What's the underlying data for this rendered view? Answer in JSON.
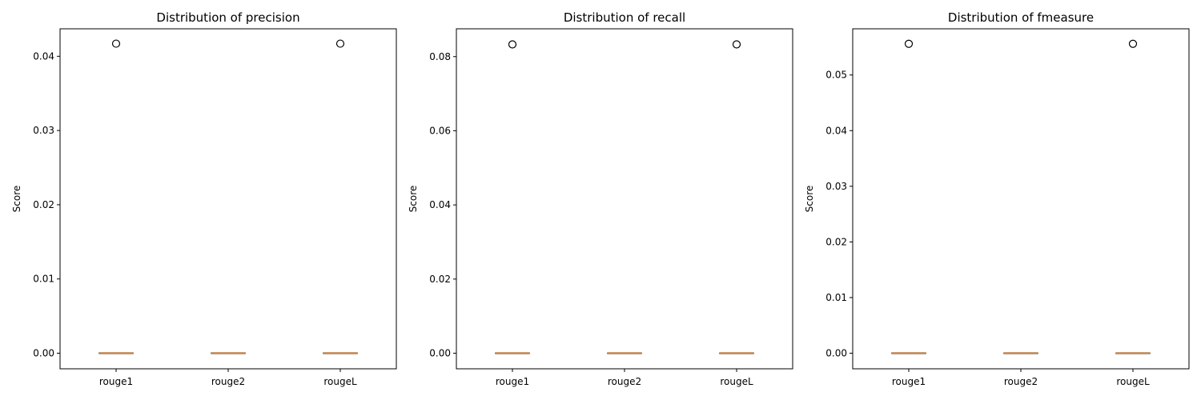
{
  "chart_data": [
    {
      "type": "box",
      "title": "Distribution of precision",
      "xlabel": "",
      "ylabel": "Score",
      "categories": [
        "rouge1",
        "rouge2",
        "rougeL"
      ],
      "ylim": [
        -0.0021,
        0.0437
      ],
      "yticks": [
        0.0,
        0.01,
        0.02,
        0.03,
        0.04
      ],
      "ytick_labels": [
        "0.00",
        "0.01",
        "0.02",
        "0.03",
        "0.04"
      ],
      "boxes": [
        {
          "category": "rouge1",
          "q1": 0,
          "median": 0,
          "q3": 0,
          "whisker_low": 0,
          "whisker_high": 0,
          "outliers": [
            0.0417
          ]
        },
        {
          "category": "rouge2",
          "q1": 0,
          "median": 0,
          "q3": 0,
          "whisker_low": 0,
          "whisker_high": 0,
          "outliers": []
        },
        {
          "category": "rougeL",
          "q1": 0,
          "median": 0,
          "q3": 0,
          "whisker_low": 0,
          "whisker_high": 0,
          "outliers": [
            0.0417
          ]
        }
      ]
    },
    {
      "type": "box",
      "title": "Distribution of recall",
      "xlabel": "",
      "ylabel": "Score",
      "categories": [
        "rouge1",
        "rouge2",
        "rougeL"
      ],
      "ylim": [
        -0.0042,
        0.0875
      ],
      "yticks": [
        0.0,
        0.02,
        0.04,
        0.06,
        0.08
      ],
      "ytick_labels": [
        "0.00",
        "0.02",
        "0.04",
        "0.06",
        "0.08"
      ],
      "boxes": [
        {
          "category": "rouge1",
          "q1": 0,
          "median": 0,
          "q3": 0,
          "whisker_low": 0,
          "whisker_high": 0,
          "outliers": [
            0.0833
          ]
        },
        {
          "category": "rouge2",
          "q1": 0,
          "median": 0,
          "q3": 0,
          "whisker_low": 0,
          "whisker_high": 0,
          "outliers": []
        },
        {
          "category": "rougeL",
          "q1": 0,
          "median": 0,
          "q3": 0,
          "whisker_low": 0,
          "whisker_high": 0,
          "outliers": [
            0.0833
          ]
        }
      ]
    },
    {
      "type": "box",
      "title": "Distribution of fmeasure",
      "xlabel": "",
      "ylabel": "Score",
      "categories": [
        "rouge1",
        "rouge2",
        "rougeL"
      ],
      "ylim": [
        -0.0028,
        0.0583
      ],
      "yticks": [
        0.0,
        0.01,
        0.02,
        0.03,
        0.04,
        0.05
      ],
      "ytick_labels": [
        "0.00",
        "0.01",
        "0.02",
        "0.03",
        "0.04",
        "0.05"
      ],
      "boxes": [
        {
          "category": "rouge1",
          "q1": 0,
          "median": 0,
          "q3": 0,
          "whisker_low": 0,
          "whisker_high": 0,
          "outliers": [
            0.0556
          ]
        },
        {
          "category": "rouge2",
          "q1": 0,
          "median": 0,
          "q3": 0,
          "whisker_low": 0,
          "whisker_high": 0,
          "outliers": []
        },
        {
          "category": "rougeL",
          "q1": 0,
          "median": 0,
          "q3": 0,
          "whisker_low": 0,
          "whisker_high": 0,
          "outliers": [
            0.0556
          ]
        }
      ]
    }
  ],
  "colors": {
    "median": "#ff7f0e",
    "box": "#000000",
    "outlier": "#000000",
    "background": "#ffffff"
  }
}
